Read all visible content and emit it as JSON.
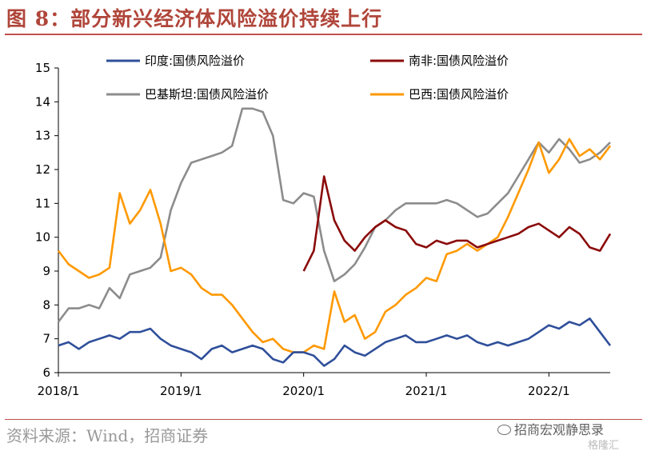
{
  "title": "图 8：部分新兴经济体风险溢价持续上行",
  "source": "资料来源：Wind，招商证券",
  "watermark": {
    "line1": "招商宏观静思录",
    "line2": "格隆汇"
  },
  "colors": {
    "india": "#2f4f9a",
    "south_africa": "#8b0a0a",
    "pakistan": "#8c8c8c",
    "brazil": "#ff9900",
    "accent": "#c0504d"
  },
  "chart_data": {
    "type": "line",
    "title": "",
    "xlabel": "",
    "ylabel": "",
    "ylim": [
      6,
      15
    ],
    "yticks": [
      6,
      7,
      8,
      9,
      10,
      11,
      12,
      13,
      14,
      15
    ],
    "xlim": [
      "2018-01",
      "2022-07"
    ],
    "xticks": [
      {
        "x": "2018-01",
        "label": "2018/1"
      },
      {
        "x": "2019-01",
        "label": "2019/1"
      },
      {
        "x": "2020-01",
        "label": "2020/1"
      },
      {
        "x": "2021-01",
        "label": "2021/1"
      },
      {
        "x": "2022-01",
        "label": "2022/1"
      }
    ],
    "grid": false,
    "legend_position": "top",
    "series": [
      {
        "name": "印度:国债风险溢价",
        "color": "#2f4f9a",
        "points": [
          [
            "2018-01",
            6.8
          ],
          [
            "2018-02",
            6.9
          ],
          [
            "2018-03",
            6.7
          ],
          [
            "2018-04",
            6.9
          ],
          [
            "2018-05",
            7.0
          ],
          [
            "2018-06",
            7.1
          ],
          [
            "2018-07",
            7.0
          ],
          [
            "2018-08",
            7.2
          ],
          [
            "2018-09",
            7.2
          ],
          [
            "2018-10",
            7.3
          ],
          [
            "2018-11",
            7.0
          ],
          [
            "2018-12",
            6.8
          ],
          [
            "2019-01",
            6.7
          ],
          [
            "2019-02",
            6.6
          ],
          [
            "2019-03",
            6.4
          ],
          [
            "2019-04",
            6.7
          ],
          [
            "2019-05",
            6.8
          ],
          [
            "2019-06",
            6.6
          ],
          [
            "2019-07",
            6.7
          ],
          [
            "2019-08",
            6.8
          ],
          [
            "2019-09",
            6.7
          ],
          [
            "2019-10",
            6.4
          ],
          [
            "2019-11",
            6.3
          ],
          [
            "2019-12",
            6.6
          ],
          [
            "2020-01",
            6.6
          ],
          [
            "2020-02",
            6.5
          ],
          [
            "2020-03",
            6.2
          ],
          [
            "2020-04",
            6.4
          ],
          [
            "2020-05",
            6.8
          ],
          [
            "2020-06",
            6.6
          ],
          [
            "2020-07",
            6.5
          ],
          [
            "2020-08",
            6.7
          ],
          [
            "2020-09",
            6.9
          ],
          [
            "2020-10",
            7.0
          ],
          [
            "2020-11",
            7.1
          ],
          [
            "2020-12",
            6.9
          ],
          [
            "2021-01",
            6.9
          ],
          [
            "2021-02",
            7.0
          ],
          [
            "2021-03",
            7.1
          ],
          [
            "2021-04",
            7.0
          ],
          [
            "2021-05",
            7.1
          ],
          [
            "2021-06",
            6.9
          ],
          [
            "2021-07",
            6.8
          ],
          [
            "2021-08",
            6.9
          ],
          [
            "2021-09",
            6.8
          ],
          [
            "2021-10",
            6.9
          ],
          [
            "2021-11",
            7.0
          ],
          [
            "2021-12",
            7.2
          ],
          [
            "2022-01",
            7.4
          ],
          [
            "2022-02",
            7.3
          ],
          [
            "2022-03",
            7.5
          ],
          [
            "2022-04",
            7.4
          ],
          [
            "2022-05",
            7.6
          ],
          [
            "2022-06",
            7.2
          ],
          [
            "2022-07",
            6.8
          ]
        ]
      },
      {
        "name": "南非:国债风险溢价",
        "color": "#8b0a0a",
        "points": [
          [
            "2020-01",
            9.0
          ],
          [
            "2020-02",
            9.6
          ],
          [
            "2020-03",
            11.8
          ],
          [
            "2020-04",
            10.5
          ],
          [
            "2020-05",
            9.9
          ],
          [
            "2020-06",
            9.6
          ],
          [
            "2020-07",
            10.0
          ],
          [
            "2020-08",
            10.3
          ],
          [
            "2020-09",
            10.5
          ],
          [
            "2020-10",
            10.3
          ],
          [
            "2020-11",
            10.2
          ],
          [
            "2020-12",
            9.8
          ],
          [
            "2021-01",
            9.7
          ],
          [
            "2021-02",
            9.9
          ],
          [
            "2021-03",
            9.8
          ],
          [
            "2021-04",
            9.9
          ],
          [
            "2021-05",
            9.9
          ],
          [
            "2021-06",
            9.7
          ],
          [
            "2021-07",
            9.8
          ],
          [
            "2021-08",
            9.9
          ],
          [
            "2021-09",
            10.0
          ],
          [
            "2021-10",
            10.1
          ],
          [
            "2021-11",
            10.3
          ],
          [
            "2021-12",
            10.4
          ],
          [
            "2022-01",
            10.2
          ],
          [
            "2022-02",
            10.0
          ],
          [
            "2022-03",
            10.3
          ],
          [
            "2022-04",
            10.1
          ],
          [
            "2022-05",
            9.7
          ],
          [
            "2022-06",
            9.6
          ],
          [
            "2022-07",
            10.1
          ]
        ]
      },
      {
        "name": "巴基斯坦:国债风险溢价",
        "color": "#8c8c8c",
        "points": [
          [
            "2018-01",
            7.5
          ],
          [
            "2018-02",
            7.9
          ],
          [
            "2018-03",
            7.9
          ],
          [
            "2018-04",
            8.0
          ],
          [
            "2018-05",
            7.9
          ],
          [
            "2018-06",
            8.5
          ],
          [
            "2018-07",
            8.2
          ],
          [
            "2018-08",
            8.9
          ],
          [
            "2018-09",
            9.0
          ],
          [
            "2018-10",
            9.1
          ],
          [
            "2018-11",
            9.4
          ],
          [
            "2018-12",
            10.8
          ],
          [
            "2019-01",
            11.6
          ],
          [
            "2019-02",
            12.2
          ],
          [
            "2019-03",
            12.3
          ],
          [
            "2019-04",
            12.4
          ],
          [
            "2019-05",
            12.5
          ],
          [
            "2019-06",
            12.7
          ],
          [
            "2019-07",
            13.8
          ],
          [
            "2019-08",
            13.8
          ],
          [
            "2019-09",
            13.7
          ],
          [
            "2019-10",
            13.0
          ],
          [
            "2019-11",
            11.1
          ],
          [
            "2019-12",
            11.0
          ],
          [
            "2020-01",
            11.3
          ],
          [
            "2020-02",
            11.2
          ],
          [
            "2020-03",
            9.6
          ],
          [
            "2020-04",
            8.7
          ],
          [
            "2020-05",
            8.9
          ],
          [
            "2020-06",
            9.2
          ],
          [
            "2020-07",
            9.7
          ],
          [
            "2020-08",
            10.3
          ],
          [
            "2020-09",
            10.5
          ],
          [
            "2020-10",
            10.8
          ],
          [
            "2020-11",
            11.0
          ],
          [
            "2020-12",
            11.0
          ],
          [
            "2021-01",
            11.0
          ],
          [
            "2021-02",
            11.0
          ],
          [
            "2021-03",
            11.1
          ],
          [
            "2021-04",
            11.0
          ],
          [
            "2021-05",
            10.8
          ],
          [
            "2021-06",
            10.6
          ],
          [
            "2021-07",
            10.7
          ],
          [
            "2021-08",
            11.0
          ],
          [
            "2021-09",
            11.3
          ],
          [
            "2021-10",
            11.8
          ],
          [
            "2021-11",
            12.3
          ],
          [
            "2021-12",
            12.8
          ],
          [
            "2022-01",
            12.5
          ],
          [
            "2022-02",
            12.9
          ],
          [
            "2022-03",
            12.6
          ],
          [
            "2022-04",
            12.2
          ],
          [
            "2022-05",
            12.3
          ],
          [
            "2022-06",
            12.5
          ],
          [
            "2022-07",
            12.8
          ]
        ]
      },
      {
        "name": "巴西:国债风险溢价",
        "color": "#ff9900",
        "points": [
          [
            "2018-01",
            9.6
          ],
          [
            "2018-02",
            9.2
          ],
          [
            "2018-03",
            9.0
          ],
          [
            "2018-04",
            8.8
          ],
          [
            "2018-05",
            8.9
          ],
          [
            "2018-06",
            9.1
          ],
          [
            "2018-07",
            11.3
          ],
          [
            "2018-08",
            10.4
          ],
          [
            "2018-09",
            10.8
          ],
          [
            "2018-10",
            11.4
          ],
          [
            "2018-11",
            10.4
          ],
          [
            "2018-12",
            9.0
          ],
          [
            "2019-01",
            9.1
          ],
          [
            "2019-02",
            8.9
          ],
          [
            "2019-03",
            8.5
          ],
          [
            "2019-04",
            8.3
          ],
          [
            "2019-05",
            8.3
          ],
          [
            "2019-06",
            8.0
          ],
          [
            "2019-07",
            7.6
          ],
          [
            "2019-08",
            7.2
          ],
          [
            "2019-09",
            6.9
          ],
          [
            "2019-10",
            7.0
          ],
          [
            "2019-11",
            6.7
          ],
          [
            "2019-12",
            6.6
          ],
          [
            "2020-01",
            6.6
          ],
          [
            "2020-02",
            6.8
          ],
          [
            "2020-03",
            6.7
          ],
          [
            "2020-04",
            8.4
          ],
          [
            "2020-05",
            7.5
          ],
          [
            "2020-06",
            7.7
          ],
          [
            "2020-07",
            7.0
          ],
          [
            "2020-08",
            7.2
          ],
          [
            "2020-09",
            7.8
          ],
          [
            "2020-10",
            8.0
          ],
          [
            "2020-11",
            8.3
          ],
          [
            "2020-12",
            8.5
          ],
          [
            "2021-01",
            8.8
          ],
          [
            "2021-02",
            8.7
          ],
          [
            "2021-03",
            9.5
          ],
          [
            "2021-04",
            9.6
          ],
          [
            "2021-05",
            9.8
          ],
          [
            "2021-06",
            9.6
          ],
          [
            "2021-07",
            9.8
          ],
          [
            "2021-08",
            10.0
          ],
          [
            "2021-09",
            10.6
          ],
          [
            "2021-10",
            11.3
          ],
          [
            "2021-11",
            12.0
          ],
          [
            "2021-12",
            12.8
          ],
          [
            "2022-01",
            11.9
          ],
          [
            "2022-02",
            12.3
          ],
          [
            "2022-03",
            12.9
          ],
          [
            "2022-04",
            12.4
          ],
          [
            "2022-05",
            12.6
          ],
          [
            "2022-06",
            12.3
          ],
          [
            "2022-07",
            12.7
          ]
        ]
      }
    ]
  }
}
